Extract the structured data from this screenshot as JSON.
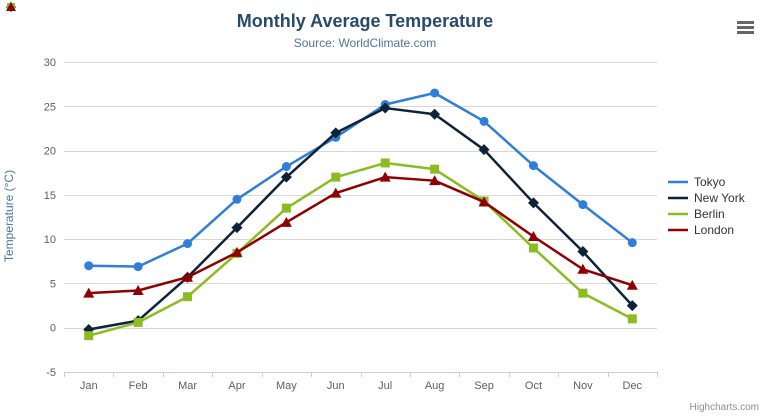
{
  "chart_data": {
    "type": "line",
    "title": "Monthly Average Temperature",
    "subtitle": "Source: WorldClimate.com",
    "ylabel": "Temperature (°C)",
    "xlabel": "",
    "categories": [
      "Jan",
      "Feb",
      "Mar",
      "Apr",
      "May",
      "Jun",
      "Jul",
      "Aug",
      "Sep",
      "Oct",
      "Nov",
      "Dec"
    ],
    "ylim": [
      -5,
      30
    ],
    "ytick_step": 5,
    "grid": true,
    "legend_position": "right",
    "series": [
      {
        "name": "Tokyo",
        "marker": "circle",
        "color": "#2f7ed8",
        "values": [
          7.0,
          6.9,
          9.5,
          14.5,
          18.2,
          21.5,
          25.2,
          26.5,
          23.3,
          18.3,
          13.9,
          9.6
        ]
      },
      {
        "name": "New York",
        "marker": "diamond",
        "color": "#0d233a",
        "values": [
          -0.2,
          0.8,
          5.7,
          11.3,
          17.0,
          22.0,
          24.8,
          24.1,
          20.1,
          14.1,
          8.6,
          2.5
        ]
      },
      {
        "name": "Berlin",
        "marker": "square",
        "color": "#8bbc21",
        "values": [
          -0.9,
          0.6,
          3.5,
          8.4,
          13.5,
          17.0,
          18.6,
          17.9,
          14.3,
          9.0,
          3.9,
          1.0
        ]
      },
      {
        "name": "London",
        "marker": "triangle",
        "color": "#910000",
        "values": [
          3.9,
          4.2,
          5.7,
          8.5,
          11.9,
          15.2,
          17.0,
          16.6,
          14.2,
          10.3,
          6.6,
          4.8
        ]
      }
    ],
    "credits": "Highcharts.com",
    "style": {
      "grid_color": "#d8d8d8",
      "axis_line_color": "#c0d0e0",
      "axis_label_color": "#606060",
      "title_color": "#274b6d",
      "subtitle_color": "#4d759e"
    }
  }
}
